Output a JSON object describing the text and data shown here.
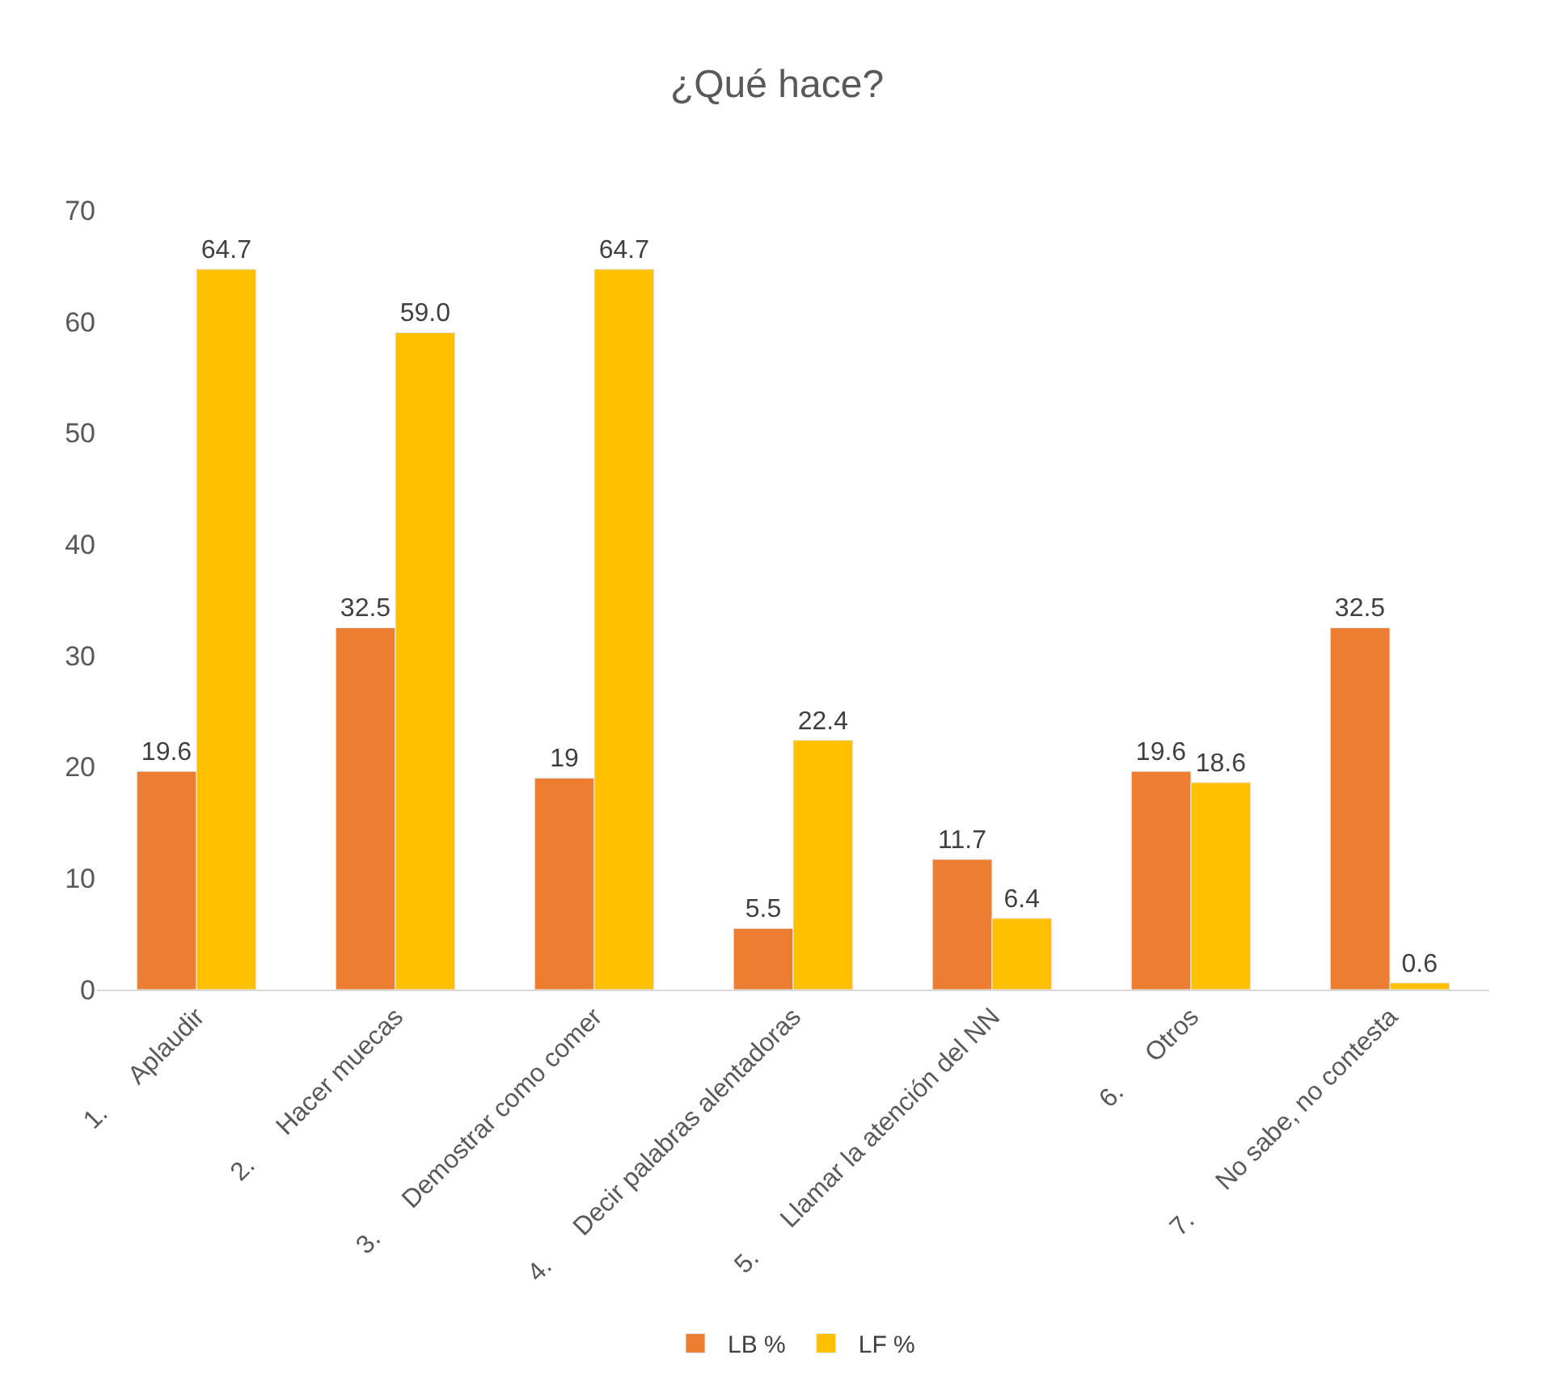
{
  "chart_data": {
    "type": "bar",
    "title": "¿Qué hace?",
    "categories": [
      "1.      Aplaudir",
      "2.      Hacer muecas",
      "3.      Demostrar como comer",
      "4.      Decir palabras alentadoras",
      "5.      Llamar la atención del NN",
      "6.      Otros",
      "7.      No sabe, no contesta"
    ],
    "series": [
      {
        "name": "LB %",
        "color": "#ed7d31",
        "values": [
          19.6,
          32.5,
          19,
          5.5,
          11.7,
          19.6,
          32.5
        ],
        "value_labels": [
          "19.6",
          "32.5",
          "19",
          "5.5",
          "11.7",
          "19.6",
          "32.5"
        ]
      },
      {
        "name": "LF %",
        "color": "#ffc000",
        "values": [
          64.7,
          59.0,
          64.7,
          22.4,
          6.4,
          18.6,
          0.6
        ],
        "value_labels": [
          "64.7",
          "59.0",
          "64.7",
          "22.4",
          "6.4",
          "18.6",
          "0.6"
        ]
      }
    ],
    "ylim": [
      0,
      70
    ],
    "yticks": [
      0,
      10,
      20,
      30,
      40,
      50,
      60,
      70
    ],
    "legend": "bottom"
  }
}
